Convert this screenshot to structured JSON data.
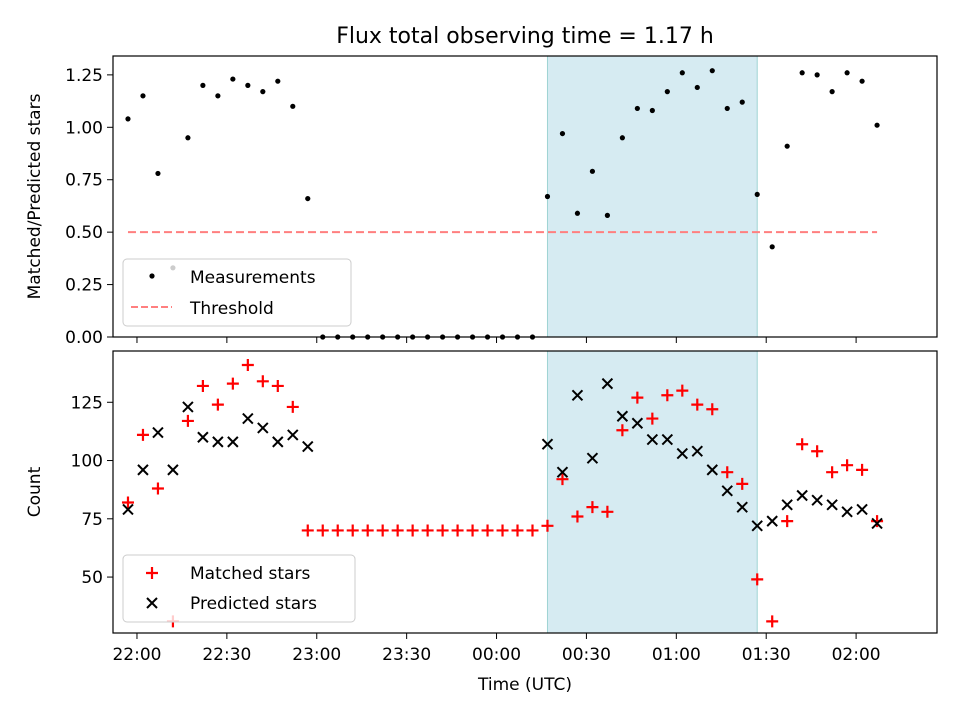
{
  "title": "Flux total observing time = 1.17 h",
  "colors": {
    "measurement": "#000000",
    "threshold": "#ff7f7f",
    "matched": "#ff0000",
    "predicted": "#000000",
    "shade": "#add8e6"
  },
  "chart_data": [
    {
      "type": "scatter",
      "ylabel": "Matched/Predicted stars",
      "xlim": [
        "21:52",
        "02:27"
      ],
      "ylim": [
        0,
        1.34
      ],
      "yticks": [
        0.0,
        0.25,
        0.5,
        0.75,
        1.0,
        1.25
      ],
      "ytick_labels": [
        "0.00",
        "0.25",
        "0.50",
        "0.75",
        "1.00",
        "1.25"
      ],
      "legend": {
        "position": "lower-left",
        "entries": [
          "Measurements",
          "Threshold"
        ]
      },
      "shaded_span": [
        "00:17",
        "01:27"
      ],
      "threshold": {
        "name": "Threshold",
        "value": 0.5,
        "x": [
          "21:57",
          "02:07"
        ]
      },
      "series": [
        {
          "name": "Measurements",
          "x": [
            "21:57",
            "22:02",
            "22:07",
            "22:12",
            "22:17",
            "22:22",
            "22:27",
            "22:32",
            "22:37",
            "22:42",
            "22:47",
            "22:52",
            "22:57",
            "23:02",
            "23:07",
            "23:12",
            "23:17",
            "23:22",
            "23:27",
            "23:32",
            "23:37",
            "23:42",
            "23:47",
            "23:52",
            "23:57",
            "00:02",
            "00:07",
            "00:12",
            "00:17",
            "00:22",
            "00:27",
            "00:32",
            "00:37",
            "00:42",
            "00:47",
            "00:52",
            "00:57",
            "01:02",
            "01:07",
            "01:12",
            "01:17",
            "01:22",
            "01:27",
            "01:32",
            "01:37",
            "01:42",
            "01:47",
            "01:52",
            "01:57",
            "02:02",
            "02:07"
          ],
          "y": [
            1.04,
            1.15,
            0.78,
            0.33,
            0.95,
            1.2,
            1.15,
            1.23,
            1.2,
            1.17,
            1.22,
            1.1,
            0.66,
            0,
            0,
            0,
            0,
            0,
            0,
            0,
            0,
            0,
            0,
            0,
            0,
            0,
            0,
            0,
            0.67,
            0.97,
            0.59,
            0.79,
            0.58,
            0.95,
            1.09,
            1.08,
            1.17,
            1.26,
            1.19,
            1.27,
            1.09,
            1.12,
            0.68,
            0.43,
            0.91,
            1.26,
            1.25,
            1.17,
            1.26,
            1.22,
            1.01
          ]
        }
      ]
    },
    {
      "type": "scatter",
      "ylabel": "Count",
      "xlabel": "Time (UTC)",
      "xlim": [
        "21:52",
        "02:27"
      ],
      "ylim": [
        26,
        147
      ],
      "yticks": [
        50,
        75,
        100,
        125
      ],
      "xtick_labels": [
        "22:00",
        "22:30",
        "23:00",
        "23:30",
        "00:00",
        "00:30",
        "01:00",
        "01:30",
        "02:00"
      ],
      "legend": {
        "position": "lower-left",
        "entries": [
          "Matched stars",
          "Predicted stars"
        ]
      },
      "shaded_span": [
        "00:17",
        "01:27"
      ],
      "series": [
        {
          "name": "Matched stars",
          "x": [
            "21:57",
            "22:02",
            "22:07",
            "22:12",
            "22:17",
            "22:22",
            "22:27",
            "22:32",
            "22:37",
            "22:42",
            "22:47",
            "22:52",
            "22:57",
            "23:02",
            "23:07",
            "23:12",
            "23:17",
            "23:22",
            "23:27",
            "23:32",
            "23:37",
            "23:42",
            "23:47",
            "23:52",
            "23:57",
            "00:02",
            "00:07",
            "00:12",
            "00:17",
            "00:22",
            "00:27",
            "00:32",
            "00:37",
            "00:42",
            "00:47",
            "00:52",
            "00:57",
            "01:02",
            "01:07",
            "01:12",
            "01:17",
            "01:22",
            "01:27",
            "01:32",
            "01:37",
            "01:42",
            "01:47",
            "01:52",
            "01:57",
            "02:02",
            "02:07"
          ],
          "y": [
            82,
            111,
            88,
            31,
            117,
            132,
            124,
            133,
            141,
            134,
            132,
            123,
            70,
            70,
            70,
            70,
            70,
            70,
            70,
            70,
            70,
            70,
            70,
            70,
            70,
            70,
            70,
            70,
            72,
            92,
            76,
            80,
            78,
            113,
            127,
            118,
            128,
            130,
            124,
            122,
            95,
            90,
            49,
            31,
            74,
            107,
            104,
            95,
            98,
            96,
            74
          ]
        },
        {
          "name": "Predicted stars",
          "x": [
            "21:57",
            "22:02",
            "22:07",
            "22:12",
            "22:17",
            "22:22",
            "22:27",
            "22:32",
            "22:37",
            "22:42",
            "22:47",
            "22:52",
            "22:57",
            "00:17",
            "00:22",
            "00:27",
            "00:32",
            "00:37",
            "00:42",
            "00:47",
            "00:52",
            "00:57",
            "01:02",
            "01:07",
            "01:12",
            "01:17",
            "01:22",
            "01:27",
            "01:32",
            "01:37",
            "01:42",
            "01:47",
            "01:52",
            "01:57",
            "02:02",
            "02:07"
          ],
          "y": [
            79,
            96,
            112,
            96,
            123,
            110,
            108,
            108,
            118,
            114,
            108,
            111,
            106,
            107,
            95,
            128,
            101,
            133,
            119,
            116,
            109,
            109,
            103,
            104,
            96,
            87,
            80,
            72,
            74,
            81,
            85,
            83,
            81,
            78,
            79,
            73
          ]
        }
      ]
    }
  ]
}
